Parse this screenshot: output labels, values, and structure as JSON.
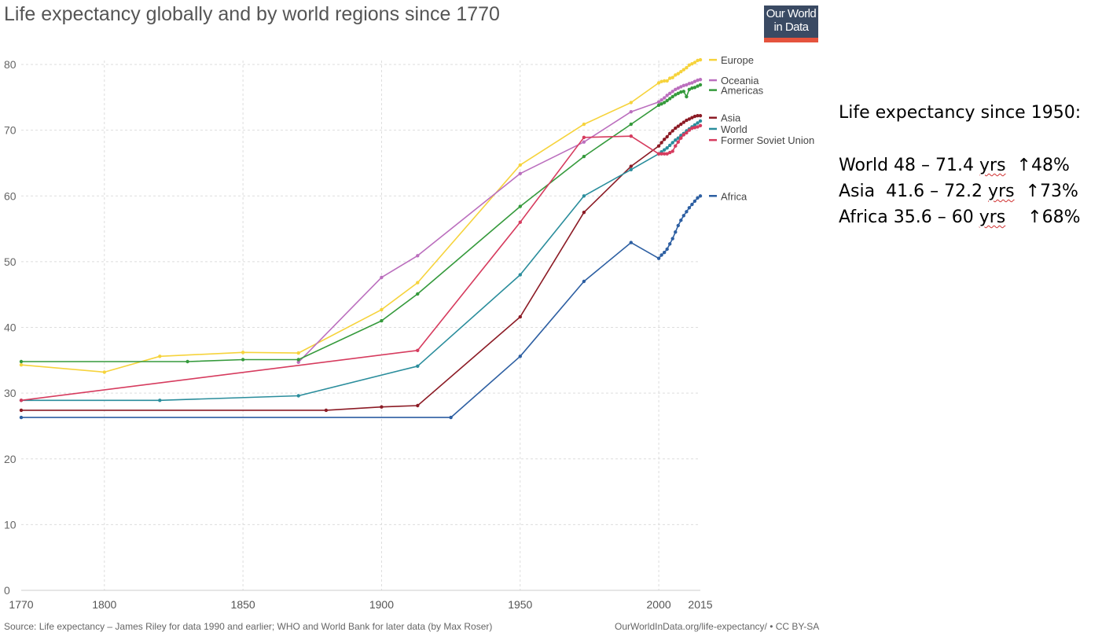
{
  "chart_data": {
    "type": "line",
    "title": "Life expectancy globally and by world regions since 1770",
    "xlabel": "",
    "ylabel": "",
    "xlim": [
      1770,
      2015
    ],
    "ylim": [
      0,
      80
    ],
    "x_ticks": [
      "1770",
      "1800",
      "1850",
      "1900",
      "1950",
      "2000",
      "2015"
    ],
    "y_ticks": [
      "0",
      "10",
      "20",
      "30",
      "40",
      "50",
      "60",
      "70",
      "80"
    ],
    "grid": true,
    "legend_position": "right",
    "source": "Source: Life expectancy – James Riley for data 1990 and earlier; WHO and World Bank for later data (by Max Roser)",
    "credit": "OurWorldInData.org/life-expectancy/ • CC BY-SA",
    "series": [
      {
        "name": "Europe",
        "color": "#f6d33c",
        "label_y": 80.7,
        "points": [
          [
            1770,
            34.3
          ],
          [
            1800,
            33.2
          ],
          [
            1820,
            35.6
          ],
          [
            1850,
            36.2
          ],
          [
            1870,
            36.1
          ],
          [
            1900,
            42.7
          ],
          [
            1913,
            46.8
          ],
          [
            1950,
            64.7
          ],
          [
            1973,
            70.9
          ],
          [
            1990,
            74.2
          ],
          [
            2000,
            77.2
          ],
          [
            2001,
            77.4
          ],
          [
            2002,
            77.5
          ],
          [
            2003,
            77.5
          ],
          [
            2004,
            77.9
          ],
          [
            2005,
            78.0
          ],
          [
            2006,
            78.4
          ],
          [
            2007,
            78.6
          ],
          [
            2008,
            78.9
          ],
          [
            2009,
            79.2
          ],
          [
            2010,
            79.5
          ],
          [
            2011,
            79.9
          ],
          [
            2012,
            80.1
          ],
          [
            2013,
            80.3
          ],
          [
            2014,
            80.6
          ],
          [
            2015,
            80.7
          ]
        ]
      },
      {
        "name": "Oceania",
        "color": "#bb6fbe",
        "label_y": 77.6,
        "points": [
          [
            1870,
            34.7
          ],
          [
            1900,
            47.6
          ],
          [
            1913,
            50.9
          ],
          [
            1950,
            63.4
          ],
          [
            1973,
            68.2
          ],
          [
            1990,
            72.8
          ],
          [
            2000,
            74.3
          ],
          [
            2001,
            74.6
          ],
          [
            2002,
            74.9
          ],
          [
            2003,
            75.3
          ],
          [
            2004,
            75.6
          ],
          [
            2005,
            75.9
          ],
          [
            2006,
            76.2
          ],
          [
            2007,
            76.4
          ],
          [
            2008,
            76.6
          ],
          [
            2009,
            76.8
          ],
          [
            2010,
            76.9
          ],
          [
            2011,
            77.1
          ],
          [
            2012,
            77.2
          ],
          [
            2013,
            77.4
          ],
          [
            2014,
            77.6
          ],
          [
            2015,
            77.7
          ]
        ]
      },
      {
        "name": "Americas",
        "color": "#359a3c",
        "label_y": 76.1,
        "points": [
          [
            1770,
            34.8
          ],
          [
            1830,
            34.8
          ],
          [
            1850,
            35.1
          ],
          [
            1870,
            35.1
          ],
          [
            1900,
            41.0
          ],
          [
            1913,
            45.1
          ],
          [
            1950,
            58.4
          ],
          [
            1973,
            66.0
          ],
          [
            1990,
            70.9
          ],
          [
            2000,
            73.8
          ],
          [
            2001,
            74.0
          ],
          [
            2002,
            74.2
          ],
          [
            2003,
            74.5
          ],
          [
            2004,
            74.8
          ],
          [
            2005,
            75.1
          ],
          [
            2006,
            75.4
          ],
          [
            2007,
            75.6
          ],
          [
            2008,
            75.8
          ],
          [
            2009,
            75.9
          ],
          [
            2010,
            75.1
          ],
          [
            2011,
            76.2
          ],
          [
            2012,
            76.4
          ],
          [
            2013,
            76.5
          ],
          [
            2014,
            76.7
          ],
          [
            2015,
            76.9
          ]
        ]
      },
      {
        "name": "Asia",
        "color": "#8c1b25",
        "label_y": 71.9,
        "points": [
          [
            1770,
            27.4
          ],
          [
            1880,
            27.4
          ],
          [
            1900,
            27.9
          ],
          [
            1913,
            28.1
          ],
          [
            1950,
            41.6
          ],
          [
            1973,
            57.5
          ],
          [
            1990,
            64.5
          ],
          [
            2000,
            67.6
          ],
          [
            2001,
            68.1
          ],
          [
            2002,
            68.6
          ],
          [
            2003,
            69.0
          ],
          [
            2004,
            69.5
          ],
          [
            2005,
            69.9
          ],
          [
            2006,
            70.3
          ],
          [
            2007,
            70.6
          ],
          [
            2008,
            70.9
          ],
          [
            2009,
            71.2
          ],
          [
            2010,
            71.5
          ],
          [
            2011,
            71.7
          ],
          [
            2012,
            71.9
          ],
          [
            2013,
            72.1
          ],
          [
            2014,
            72.2
          ],
          [
            2015,
            72.2
          ]
        ]
      },
      {
        "name": "World",
        "color": "#2a8d9c",
        "label_y": 70.2,
        "points": [
          [
            1770,
            28.9
          ],
          [
            1820,
            28.9
          ],
          [
            1870,
            29.6
          ],
          [
            1913,
            34.1
          ],
          [
            1950,
            48.0
          ],
          [
            1973,
            60.0
          ],
          [
            1990,
            64.0
          ],
          [
            2000,
            66.4
          ],
          [
            2001,
            66.7
          ],
          [
            2002,
            67.0
          ],
          [
            2003,
            67.3
          ],
          [
            2004,
            67.7
          ],
          [
            2005,
            68.1
          ],
          [
            2006,
            68.5
          ],
          [
            2007,
            68.8
          ],
          [
            2008,
            69.2
          ],
          [
            2009,
            69.5
          ],
          [
            2010,
            69.9
          ],
          [
            2011,
            70.2
          ],
          [
            2012,
            70.5
          ],
          [
            2013,
            70.8
          ],
          [
            2014,
            71.1
          ],
          [
            2015,
            71.4
          ]
        ]
      },
      {
        "name": "Former Soviet Union",
        "color": "#d63b5e",
        "label_y": 68.5,
        "points": [
          [
            1770,
            28.9
          ],
          [
            1913,
            36.5
          ],
          [
            1950,
            56.0
          ],
          [
            1973,
            68.9
          ],
          [
            1990,
            69.1
          ],
          [
            2000,
            66.4
          ],
          [
            2001,
            66.4
          ],
          [
            2002,
            66.4
          ],
          [
            2003,
            66.4
          ],
          [
            2004,
            66.6
          ],
          [
            2005,
            66.8
          ],
          [
            2006,
            67.6
          ],
          [
            2007,
            68.2
          ],
          [
            2008,
            68.8
          ],
          [
            2009,
            69.3
          ],
          [
            2010,
            69.6
          ],
          [
            2011,
            70.0
          ],
          [
            2012,
            70.3
          ],
          [
            2013,
            70.4
          ],
          [
            2014,
            70.5
          ],
          [
            2015,
            70.7
          ]
        ]
      },
      {
        "name": "Africa",
        "color": "#2d5fa2",
        "label_y": 60.0,
        "points": [
          [
            1770,
            26.3
          ],
          [
            1925,
            26.3
          ],
          [
            1950,
            35.6
          ],
          [
            1973,
            47.0
          ],
          [
            1990,
            52.9
          ],
          [
            2000,
            50.5
          ],
          [
            2001,
            51.0
          ],
          [
            2002,
            51.4
          ],
          [
            2003,
            51.9
          ],
          [
            2004,
            52.7
          ],
          [
            2005,
            53.5
          ],
          [
            2006,
            54.5
          ],
          [
            2007,
            55.5
          ],
          [
            2008,
            56.3
          ],
          [
            2009,
            57.0
          ],
          [
            2010,
            57.6
          ],
          [
            2011,
            58.2
          ],
          [
            2012,
            58.7
          ],
          [
            2013,
            59.2
          ],
          [
            2014,
            59.7
          ],
          [
            2015,
            60.0
          ]
        ]
      }
    ]
  },
  "logo": {
    "line1": "Our World",
    "line2": "in Data"
  },
  "annotation": {
    "heading": "Life expectancy since 1950:",
    "rows": [
      {
        "prefix": "World 48 – 71.4 ",
        "unit": "yrs",
        "suffix": "  ↑48%"
      },
      {
        "prefix": "Asia  41.6 – 72.2 ",
        "unit": "yrs",
        "suffix": "  ↑73%"
      },
      {
        "prefix": "Africa 35.6 – 60 ",
        "unit": "yrs",
        "suffix": "    ↑68%"
      }
    ]
  }
}
